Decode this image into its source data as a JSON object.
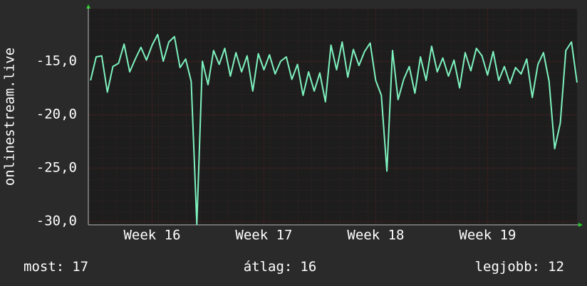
{
  "chart_data": {
    "type": "line",
    "ylabel": "onlinestream.live",
    "x": [
      15.45,
      15.5,
      15.55,
      15.6,
      15.65,
      15.7,
      15.75,
      15.8,
      15.85,
      15.9,
      15.95,
      16.0,
      16.05,
      16.1,
      16.15,
      16.2,
      16.25,
      16.3,
      16.35,
      16.4,
      16.45,
      16.5,
      16.55,
      16.6,
      16.65,
      16.7,
      16.75,
      16.8,
      16.85,
      16.9,
      16.95,
      17.0,
      17.05,
      17.1,
      17.15,
      17.2,
      17.25,
      17.3,
      17.35,
      17.4,
      17.45,
      17.5,
      17.55,
      17.6,
      17.65,
      17.7,
      17.75,
      17.8,
      17.85,
      17.9,
      17.95,
      18.0,
      18.05,
      18.1,
      18.15,
      18.2,
      18.25,
      18.3,
      18.35,
      18.4,
      18.45,
      18.5,
      18.55,
      18.6,
      18.65,
      18.7,
      18.75,
      18.8,
      18.85,
      18.9,
      18.95,
      19.0,
      19.05,
      19.1,
      19.15,
      19.2,
      19.25,
      19.3,
      19.35,
      19.4,
      19.45,
      19.5,
      19.55,
      19.6,
      19.65,
      19.7,
      19.75,
      19.8
    ],
    "series": [
      {
        "name": "onlinestream.live",
        "color": "#7ef2bf",
        "values": [
          -16.8,
          -14.6,
          -14.5,
          -17.9,
          -15.5,
          -15.2,
          -13.4,
          -16.0,
          -14.8,
          -13.7,
          -14.9,
          -13.5,
          -12.5,
          -15.0,
          -13.2,
          -12.7,
          -15.6,
          -14.8,
          -16.9,
          -30.3,
          -15.0,
          -17.2,
          -14.0,
          -15.3,
          -13.8,
          -16.4,
          -14.2,
          -16.0,
          -14.5,
          -17.8,
          -14.3,
          -15.8,
          -14.4,
          -16.2,
          -15.0,
          -14.6,
          -16.7,
          -15.3,
          -18.2,
          -16.0,
          -17.8,
          -16.1,
          -18.8,
          -13.5,
          -15.8,
          -13.2,
          -16.5,
          -13.9,
          -15.4,
          -14.1,
          -13.3,
          -16.8,
          -18.2,
          -25.3,
          -14.0,
          -18.6,
          -16.7,
          -15.5,
          -18.0,
          -14.6,
          -16.8,
          -13.6,
          -16.0,
          -14.7,
          -16.4,
          -14.9,
          -17.5,
          -14.2,
          -15.9,
          -13.8,
          -14.5,
          -16.3,
          -14.1,
          -16.8,
          -15.5,
          -17.1,
          -15.6,
          -16.2,
          -14.8,
          -18.4,
          -15.3,
          -14.2,
          -16.9,
          -23.2,
          -20.8,
          -14.0,
          -13.2,
          -17.0
        ]
      }
    ],
    "xlim": [
      15.43,
      19.8
    ],
    "ylim": [
      -30.33,
      -10.07
    ],
    "xticks": [
      {
        "value": 16,
        "label": "Week 16"
      },
      {
        "value": 17,
        "label": "Week 17"
      },
      {
        "value": 18,
        "label": "Week 18"
      },
      {
        "value": 19,
        "label": "Week 19"
      }
    ],
    "yticks": [
      {
        "value": -30,
        "label": "-30,0"
      },
      {
        "value": -25,
        "label": "-25,0"
      },
      {
        "value": -20,
        "label": "-20,0"
      },
      {
        "value": -15,
        "label": "-15,0"
      }
    ],
    "grid": true,
    "summary": [
      {
        "label": "most:",
        "value": 17
      },
      {
        "label": "átlag:",
        "value": 16
      },
      {
        "label": "legjobb:",
        "value": 12
      }
    ]
  }
}
